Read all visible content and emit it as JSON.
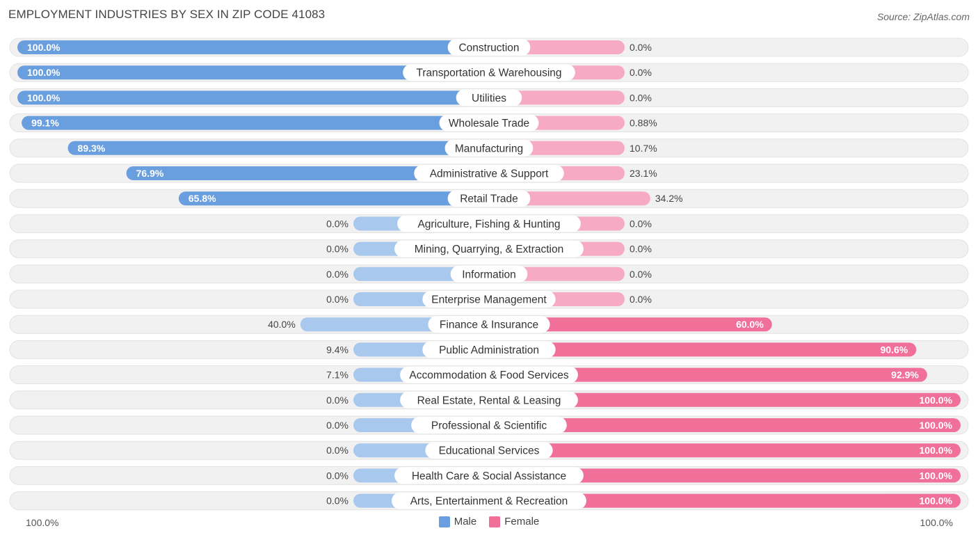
{
  "title": "EMPLOYMENT INDUSTRIES BY SEX IN ZIP CODE 41083",
  "source": "Source: ZipAtlas.com",
  "colors": {
    "male_strong": "#6a9fdf",
    "male_light": "#a9c8ed",
    "female_strong": "#f0709a",
    "female_light": "#f6aac3",
    "track": "#f1f1f1"
  },
  "legend": {
    "male": "Male",
    "female": "Female"
  },
  "axis": {
    "left_label": "100.0%",
    "right_label": "100.0%"
  },
  "chart_data": {
    "type": "bar",
    "orientation": "horizontal-diverging",
    "title": "EMPLOYMENT INDUSTRIES BY SEX IN ZIP CODE 41083",
    "xlim": [
      -100,
      100
    ],
    "series_names": [
      "Male",
      "Female"
    ],
    "rows": [
      {
        "category": "Construction",
        "male": 100.0,
        "female": 0.0,
        "male_label": "100.0%",
        "female_label": "0.0%"
      },
      {
        "category": "Transportation & Warehousing",
        "male": 100.0,
        "female": 0.0,
        "male_label": "100.0%",
        "female_label": "0.0%"
      },
      {
        "category": "Utilities",
        "male": 100.0,
        "female": 0.0,
        "male_label": "100.0%",
        "female_label": "0.0%"
      },
      {
        "category": "Wholesale Trade",
        "male": 99.1,
        "female": 0.88,
        "male_label": "99.1%",
        "female_label": "0.88%"
      },
      {
        "category": "Manufacturing",
        "male": 89.3,
        "female": 10.7,
        "male_label": "89.3%",
        "female_label": "10.7%"
      },
      {
        "category": "Administrative & Support",
        "male": 76.9,
        "female": 23.1,
        "male_label": "76.9%",
        "female_label": "23.1%"
      },
      {
        "category": "Retail Trade",
        "male": 65.8,
        "female": 34.2,
        "male_label": "65.8%",
        "female_label": "34.2%"
      },
      {
        "category": "Agriculture, Fishing & Hunting",
        "male": 0.0,
        "female": 0.0,
        "male_label": "0.0%",
        "female_label": "0.0%"
      },
      {
        "category": "Mining, Quarrying, & Extraction",
        "male": 0.0,
        "female": 0.0,
        "male_label": "0.0%",
        "female_label": "0.0%"
      },
      {
        "category": "Information",
        "male": 0.0,
        "female": 0.0,
        "male_label": "0.0%",
        "female_label": "0.0%"
      },
      {
        "category": "Enterprise Management",
        "male": 0.0,
        "female": 0.0,
        "male_label": "0.0%",
        "female_label": "0.0%"
      },
      {
        "category": "Finance & Insurance",
        "male": 40.0,
        "female": 60.0,
        "male_label": "40.0%",
        "female_label": "60.0%"
      },
      {
        "category": "Public Administration",
        "male": 9.4,
        "female": 90.6,
        "male_label": "9.4%",
        "female_label": "90.6%"
      },
      {
        "category": "Accommodation & Food Services",
        "male": 7.1,
        "female": 92.9,
        "male_label": "7.1%",
        "female_label": "92.9%"
      },
      {
        "category": "Real Estate, Rental & Leasing",
        "male": 0.0,
        "female": 100.0,
        "male_label": "0.0%",
        "female_label": "100.0%"
      },
      {
        "category": "Professional & Scientific",
        "male": 0.0,
        "female": 100.0,
        "male_label": "0.0%",
        "female_label": "100.0%"
      },
      {
        "category": "Educational Services",
        "male": 0.0,
        "female": 100.0,
        "male_label": "0.0%",
        "female_label": "100.0%"
      },
      {
        "category": "Health Care & Social Assistance",
        "male": 0.0,
        "female": 100.0,
        "male_label": "0.0%",
        "female_label": "100.0%"
      },
      {
        "category": "Arts, Entertainment & Recreation",
        "male": 0.0,
        "female": 100.0,
        "male_label": "0.0%",
        "female_label": "100.0%"
      }
    ]
  }
}
